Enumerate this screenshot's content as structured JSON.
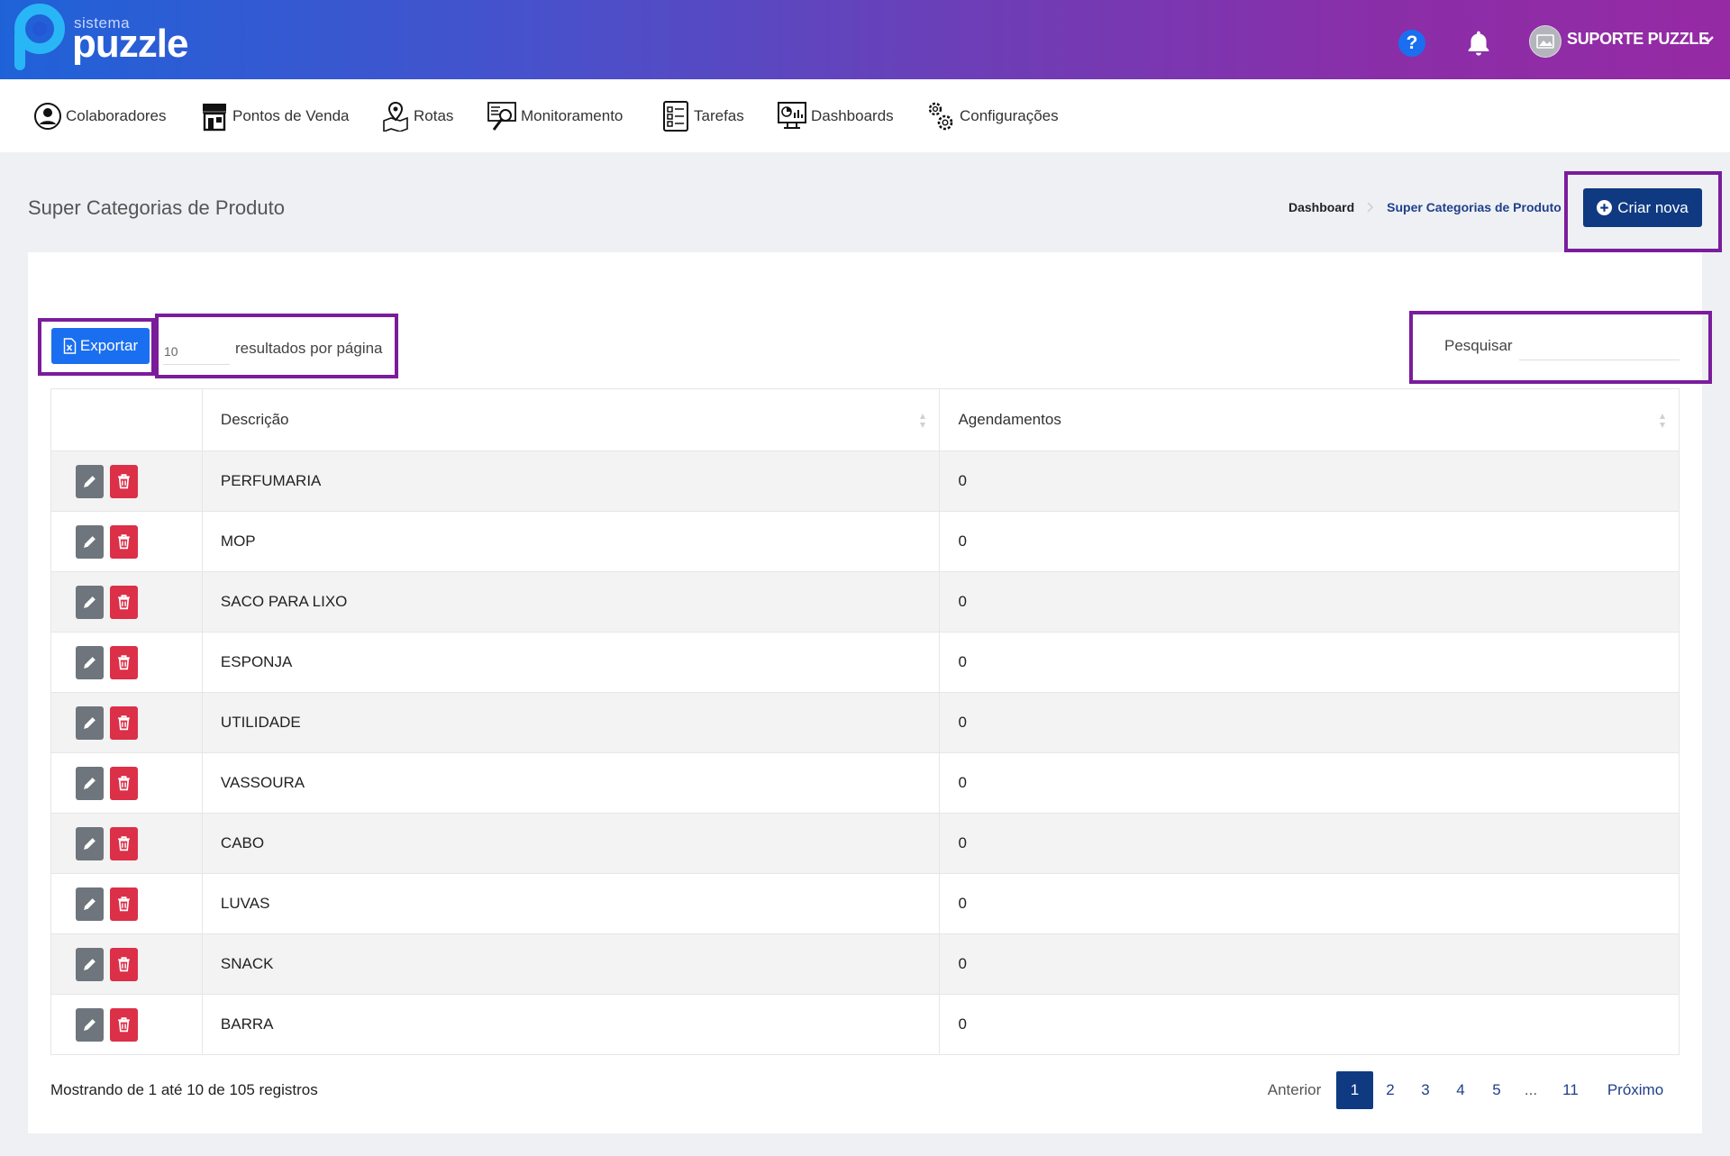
{
  "header": {
    "logo_small": "sistema",
    "logo_big": "puzzle",
    "help_label": "?",
    "user_name": "SUPORTE PUZZLE"
  },
  "nav": {
    "items": [
      {
        "label": "Colaboradores",
        "icon": "user-circle-icon"
      },
      {
        "label": "Pontos de Venda",
        "icon": "store-icon"
      },
      {
        "label": "Rotas",
        "icon": "map-pin-icon"
      },
      {
        "label": "Monitoramento",
        "icon": "monitoring-icon"
      },
      {
        "label": "Tarefas",
        "icon": "task-list-icon"
      },
      {
        "label": "Dashboards",
        "icon": "dashboard-monitor-icon"
      },
      {
        "label": "Configurações",
        "icon": "gears-icon"
      }
    ]
  },
  "page": {
    "title": "Super Categorias de Produto",
    "breadcrumb": {
      "home": "Dashboard",
      "current": "Super Categorias de Produto"
    },
    "create_button": "Criar nova"
  },
  "toolbar": {
    "export_button": "Exportar",
    "per_page_value": "10",
    "per_page_label": "resultados por página",
    "search_label": "Pesquisar",
    "search_value": ""
  },
  "table": {
    "columns": [
      "Descrição",
      "Agendamentos"
    ],
    "rows": [
      {
        "descricao": "PERFUMARIA",
        "agendamentos": "0"
      },
      {
        "descricao": "MOP",
        "agendamentos": "0"
      },
      {
        "descricao": "SACO PARA LIXO",
        "agendamentos": "0"
      },
      {
        "descricao": "ESPONJA",
        "agendamentos": "0"
      },
      {
        "descricao": "UTILIDADE",
        "agendamentos": "0"
      },
      {
        "descricao": "VASSOURA",
        "agendamentos": "0"
      },
      {
        "descricao": "CABO",
        "agendamentos": "0"
      },
      {
        "descricao": "LUVAS",
        "agendamentos": "0"
      },
      {
        "descricao": "SNACK",
        "agendamentos": "0"
      },
      {
        "descricao": "BARRA",
        "agendamentos": "0"
      }
    ]
  },
  "footer": {
    "showing": "Mostrando de 1 até 10 de 105 registros",
    "pagination": {
      "prev": "Anterior",
      "pages": [
        "1",
        "2",
        "3",
        "4",
        "5",
        "...",
        "11"
      ],
      "active": "1",
      "next": "Próximo"
    }
  },
  "colors": {
    "primary_dark": "#0f3a82",
    "primary": "#1a6ff0",
    "danger": "#dc2f48",
    "secondary": "#6e757c",
    "highlight": "#7a1d9b"
  }
}
